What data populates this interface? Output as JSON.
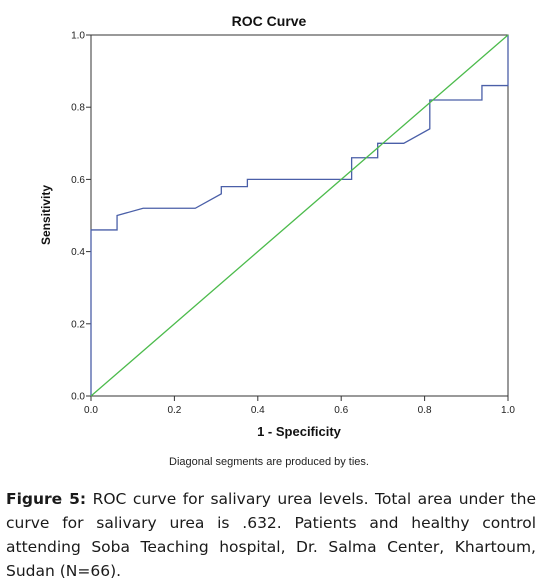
{
  "chart_data": {
    "type": "line",
    "title": "ROC Curve",
    "xlabel": "1 - Specificity",
    "ylabel": "Sensitivity",
    "xlim": [
      0.0,
      1.0
    ],
    "ylim": [
      0.0,
      1.0
    ],
    "x_ticks": [
      "0.0",
      "0.2",
      "0.4",
      "0.6",
      "0.8",
      "1.0"
    ],
    "y_ticks": [
      "0.0",
      "0.2",
      "0.4",
      "0.6",
      "0.8",
      "1.0"
    ],
    "grid": false,
    "footnote": "Diagonal segments are produced by ties.",
    "series": [
      {
        "color": "#4a5fa8",
        "points": [
          [
            0.0,
            0.0
          ],
          [
            0.0,
            0.46
          ],
          [
            0.0625,
            0.46
          ],
          [
            0.0625,
            0.5
          ],
          [
            0.125,
            0.52
          ],
          [
            0.25,
            0.52
          ],
          [
            0.3125,
            0.56
          ],
          [
            0.3125,
            0.58
          ],
          [
            0.375,
            0.58
          ],
          [
            0.375,
            0.6
          ],
          [
            0.625,
            0.6
          ],
          [
            0.625,
            0.66
          ],
          [
            0.6875,
            0.66
          ],
          [
            0.6875,
            0.7
          ],
          [
            0.75,
            0.7
          ],
          [
            0.8125,
            0.74
          ],
          [
            0.8125,
            0.82
          ],
          [
            0.9375,
            0.82
          ],
          [
            0.9375,
            0.86
          ],
          [
            1.0,
            0.86
          ],
          [
            1.0,
            1.0
          ]
        ]
      },
      {
        "color": "#4cbb4c",
        "points": [
          [
            0.0,
            0.0
          ],
          [
            1.0,
            1.0
          ]
        ]
      }
    ]
  },
  "caption": {
    "label": "Figure 5:",
    "text": " ROC curve for salivary urea levels. Total area under the curve for salivary urea is .632. Patients and healthy control attending Soba Teaching hospital, Dr. Salma Center, Khartoum, Sudan (N=66)."
  }
}
